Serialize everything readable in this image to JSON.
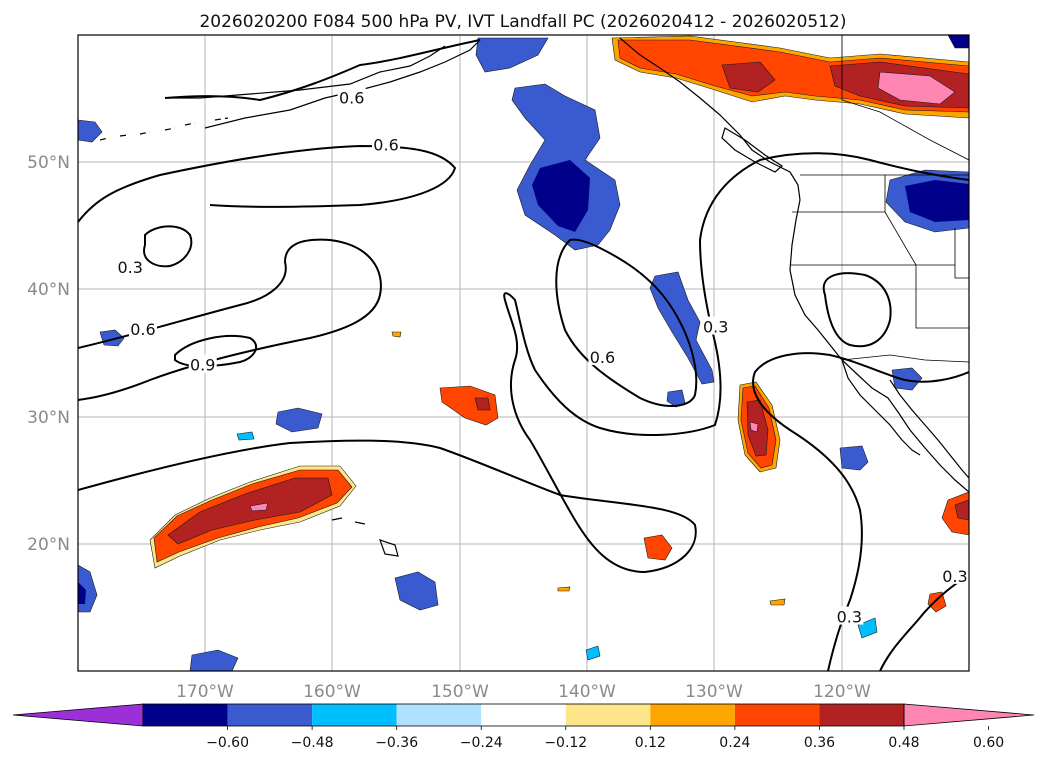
{
  "title": "2026020200 F084 500 hPa PV, IVT Landfall PC (2026020412 - 2026020512)",
  "lon_ticks": [
    "170°W",
    "160°W",
    "150°W",
    "140°W",
    "130°W",
    "120°W"
  ],
  "lat_ticks": [
    "50°N",
    "40°N",
    "30°N",
    "20°N"
  ],
  "extent": {
    "lon_min": -180,
    "lon_max": -110,
    "lat_min": 10,
    "lat_max": 60
  },
  "contour_labels": [
    {
      "text": "0.6",
      "lon": -158.5,
      "lat": 55.0
    },
    {
      "text": "0.6",
      "lon": -155.8,
      "lat": 51.3
    },
    {
      "text": "0.3",
      "lon": -175.9,
      "lat": 41.7
    },
    {
      "text": "0.6",
      "lon": -174.9,
      "lat": 36.8
    },
    {
      "text": "0.9",
      "lon": -170.2,
      "lat": 34.0
    },
    {
      "text": "0.6",
      "lon": -138.8,
      "lat": 34.6
    },
    {
      "text": "0.3",
      "lon": -129.9,
      "lat": 37.0
    },
    {
      "text": "0.3",
      "lon": -119.4,
      "lat": 14.2
    },
    {
      "text": "0.3",
      "lon": -111.1,
      "lat": 17.4
    }
  ],
  "colorbar": {
    "colors": [
      "#9b30d9",
      "#00008b",
      "#3a5bd0",
      "#00bfff",
      "#b0e2ff",
      "#ffffff",
      "#fde68a",
      "#ffa500",
      "#ff4500",
      "#b22222",
      "#ff85b3"
    ],
    "tick_labels": [
      "−0.60",
      "−0.48",
      "−0.36",
      "−0.24",
      "−0.12",
      "0.12",
      "0.24",
      "0.36",
      "0.48",
      "0.60"
    ]
  },
  "legend": {
    "contours": "500 hPa PV",
    "shading": "IVT Landfall PC"
  }
}
